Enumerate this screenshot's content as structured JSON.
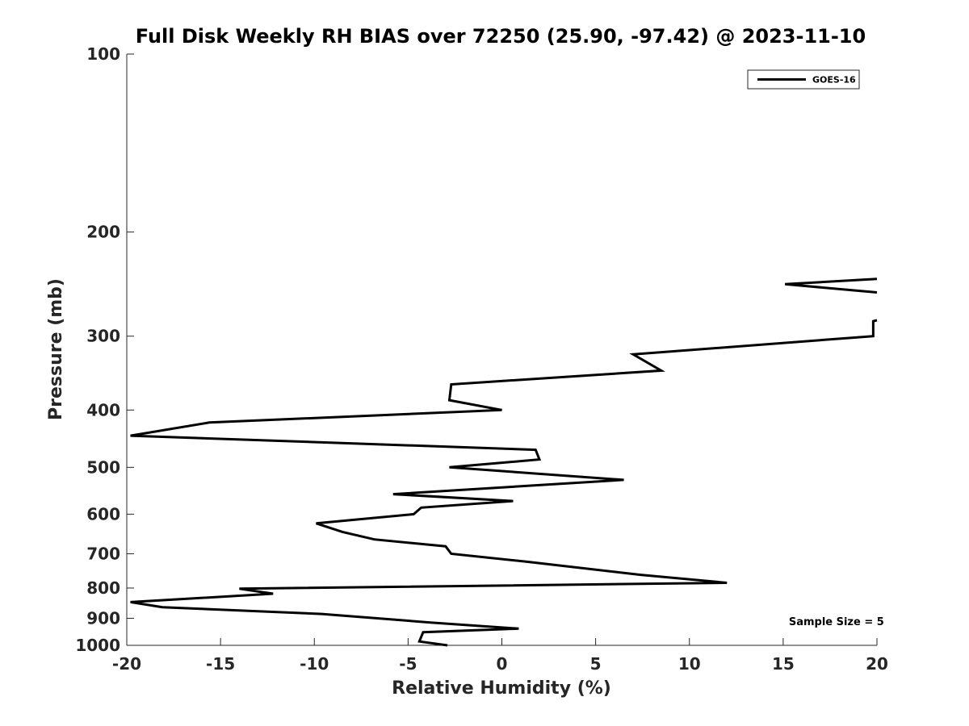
{
  "chart_data": {
    "type": "line",
    "title": "Full Disk Weekly RH BIAS over 72250 (25.90, -97.42) @ 2023-11-10",
    "xlabel": "Relative Humidity (%)",
    "ylabel": "Pressure (mb)",
    "xlim": [
      -20,
      20
    ],
    "ylim": [
      100,
      1000
    ],
    "y_scale": "log",
    "y_reversed": true,
    "grid": false,
    "legend_position": "top-right",
    "x_ticks": [
      -20,
      -15,
      -10,
      -5,
      0,
      5,
      10,
      15,
      20
    ],
    "x_tick_labels": [
      "-20",
      "-15",
      "-10",
      "-5",
      "0",
      "5",
      "10",
      "15",
      "20"
    ],
    "y_ticks": [
      100,
      200,
      300,
      400,
      500,
      600,
      700,
      800,
      900,
      1000
    ],
    "y_tick_labels": [
      "100",
      "200",
      "300",
      "400",
      "500",
      "600",
      "700",
      "800",
      "900",
      "1000"
    ],
    "series": [
      {
        "name": "GOES-16",
        "color": "#000000",
        "segments": [
          {
            "x": [
              20,
              15.1,
              20
            ],
            "y": [
              240,
              245,
              253
            ]
          },
          {
            "x": [
              20,
              19.8,
              19.8,
              7.0,
              8.5,
              -2.7,
              -2.8,
              0,
              -15.6,
              -19.8,
              1.8,
              2.0,
              -2.8,
              6.5,
              -5.8,
              0.6,
              -4.3,
              -4.7,
              -9.9,
              -8.5,
              -6.8,
              -3.0,
              -2.7,
              1.3,
              7.4,
              12.0,
              -14.0,
              -12.2,
              -19.8,
              -18.1,
              -9.6,
              -3.8,
              0.9,
              -4.2,
              -4.4,
              -2.9
            ],
            "y": [
              282,
              283,
              300,
              322,
              343,
              362,
              385,
              400,
              420,
              442,
              467,
              485,
              500,
              525,
              555,
              570,
              585,
              600,
              622,
              643,
              662,
              680,
              700,
              722,
              760,
              784,
              802,
              818,
              845,
              862,
              885,
              915,
              937,
              950,
              985,
              1000
            ]
          }
        ]
      }
    ],
    "annotations": [
      {
        "text": "Sample Size = 5",
        "x": 15.3,
        "y": 910
      }
    ]
  }
}
